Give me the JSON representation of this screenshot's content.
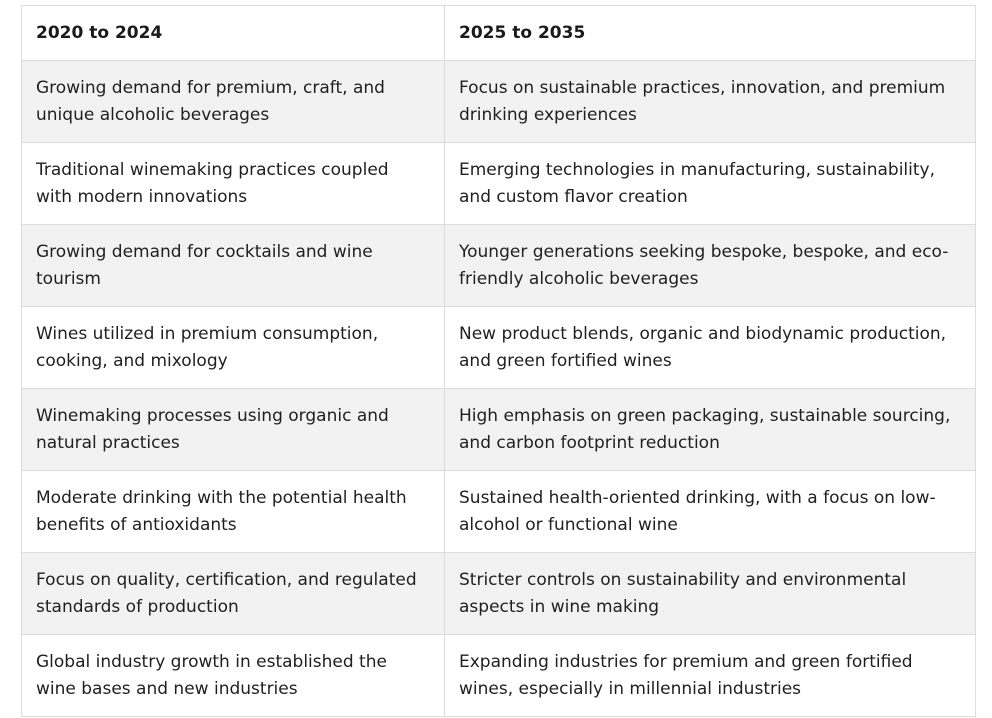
{
  "table": {
    "headers": [
      "2020 to 2024",
      "2025 to 2035"
    ],
    "rows": [
      [
        "Growing demand for premium, craft, and unique alcoholic beverages",
        "Focus on sustainable practices, innovation, and premium drinking experiences"
      ],
      [
        "Traditional winemaking practices coupled with modern innovations",
        "Emerging technologies in manufacturing, sustainability, and custom flavor creation"
      ],
      [
        "Growing demand for cocktails and wine tourism",
        "Younger generations seeking bespoke, bespoke, and eco-friendly alcoholic beverages"
      ],
      [
        "Wines utilized in premium consumption, cooking, and mixology",
        "New product blends, organic and biodynamic production, and green fortified wines"
      ],
      [
        "Winemaking processes using organic and natural practices",
        "High emphasis on green packaging, sustainable sourcing, and carbon footprint reduction"
      ],
      [
        "Moderate drinking with the potential health benefits of antioxidants",
        "Sustained health-oriented drinking, with a focus on low-alcohol or functional wine"
      ],
      [
        "Focus on quality, certification, and regulated standards of production",
        "Stricter controls on sustainability and environmental aspects in wine making"
      ],
      [
        "Global industry growth in established the wine bases and new industries",
        "Expanding industries for premium and green fortified wines, especially in millennial industries"
      ]
    ]
  }
}
